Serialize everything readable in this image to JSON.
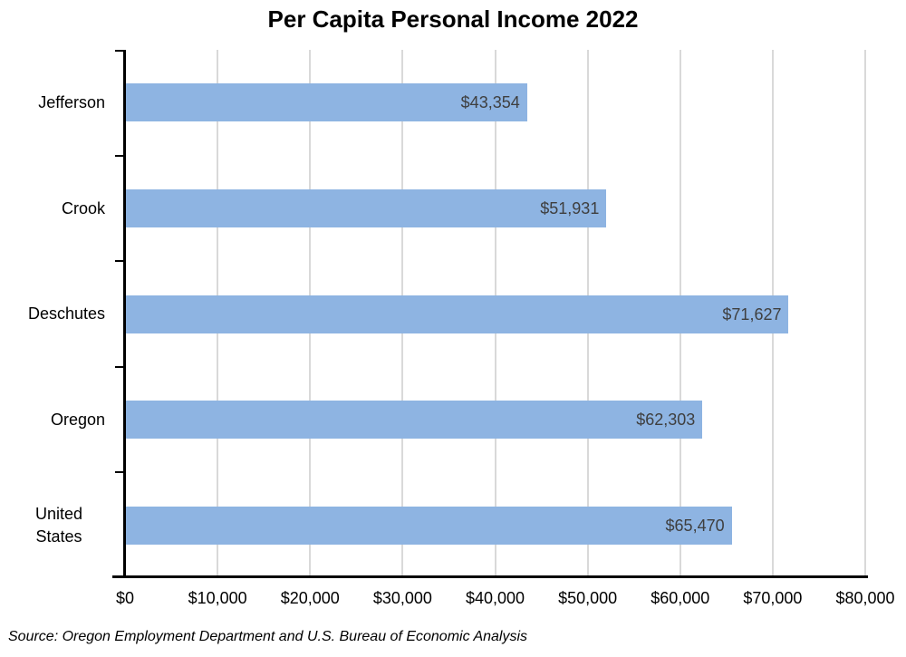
{
  "source_note": "Source: Oregon Employment Department and U.S. Bureau of Economic Analysis",
  "chart_data": {
    "type": "bar",
    "orientation": "horizontal",
    "title": "Per Capita Personal Income 2022",
    "categories": [
      "Jefferson",
      "Crook",
      "Deschutes",
      "Oregon",
      "United States"
    ],
    "values": [
      43354,
      51931,
      71627,
      62303,
      65470
    ],
    "data_labels": [
      "$43,354",
      "$51,931",
      "$71,627",
      "$62,303",
      "$65,470"
    ],
    "xlabel": "",
    "ylabel": "",
    "xlim": [
      0,
      80000
    ],
    "x_ticks": [
      {
        "value": 0,
        "label": "$0"
      },
      {
        "value": 10000,
        "label": "$10,000"
      },
      {
        "value": 20000,
        "label": "$20,000"
      },
      {
        "value": 30000,
        "label": "$30,000"
      },
      {
        "value": 40000,
        "label": "$40,000"
      },
      {
        "value": 50000,
        "label": "$50,000"
      },
      {
        "value": 60000,
        "label": "$60,000"
      },
      {
        "value": 70000,
        "label": "$70,000"
      },
      {
        "value": 80000,
        "label": "$80,000"
      }
    ],
    "grid": true,
    "legend": false,
    "colors": {
      "bar": "#8EB4E2",
      "gridline": "#D9D9D9",
      "axis": "#000000",
      "data_label": "#3F3F3F",
      "title": "#000000"
    }
  }
}
